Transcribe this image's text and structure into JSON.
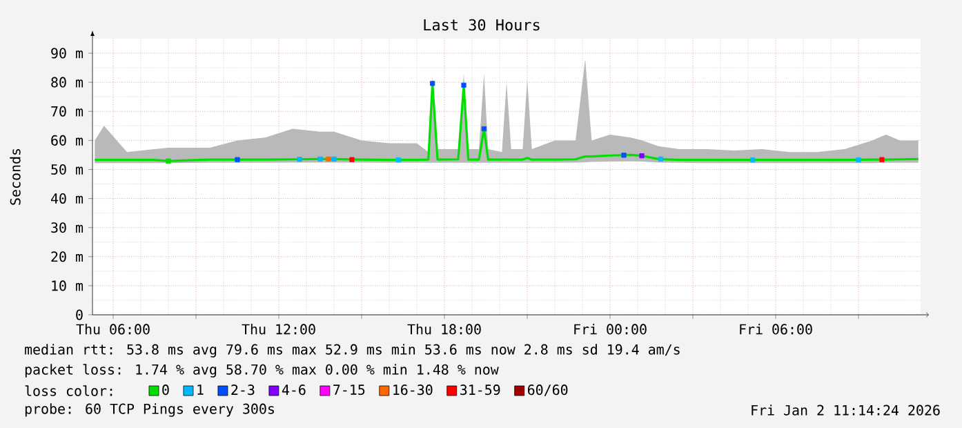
{
  "chart_data": {
    "type": "line",
    "title": "Last 30 Hours",
    "ylabel": "Seconds",
    "xlim": [
      "2026-01-01T05:15",
      "2026-01-02T11:15"
    ],
    "ylim": [
      0,
      95
    ],
    "xticks": [
      {
        "value": "2026-01-01T06:00",
        "label": "Thu 06:00"
      },
      {
        "value": "2026-01-01T09:00",
        "label": null
      },
      {
        "value": "2026-01-01T12:00",
        "label": "Thu 12:00"
      },
      {
        "value": "2026-01-01T15:00",
        "label": null
      },
      {
        "value": "2026-01-01T18:00",
        "label": "Thu 18:00"
      },
      {
        "value": "2026-01-01T21:00",
        "label": null
      },
      {
        "value": "2026-01-02T00:00",
        "label": "Fri 00:00"
      },
      {
        "value": "2026-01-02T03:00",
        "label": null
      },
      {
        "value": "2026-01-02T06:00",
        "label": "Fri 06:00"
      },
      {
        "value": "2026-01-02T09:00",
        "label": null
      }
    ],
    "yticks": [
      0,
      {
        "value": 10,
        "label": "10 m"
      },
      {
        "value": 20,
        "label": "20 m"
      },
      {
        "value": 30,
        "label": "30 m"
      },
      {
        "value": 40,
        "label": "40 m"
      },
      {
        "value": 50,
        "label": "50 m"
      },
      {
        "value": 60,
        "label": "60 m"
      },
      {
        "value": 70,
        "label": "70 m"
      },
      {
        "value": 80,
        "label": "80 m"
      },
      {
        "value": 90,
        "label": "90 m"
      }
    ],
    "grid": true,
    "legend": "bottom",
    "legend_title": "loss color:",
    "series": [
      {
        "color": "#00e000",
        "x": [
          "2026-01-01T05:20",
          "2026-01-01T05:40",
          "2026-01-01T06:30",
          "2026-01-01T07:30",
          "2026-01-01T08:00",
          "2026-01-01T09:30",
          "2026-01-01T10:30",
          "2026-01-01T11:30",
          "2026-01-01T12:30",
          "2026-01-01T13:30",
          "2026-01-01T14:00",
          "2026-01-01T15:00",
          "2026-01-01T16:00",
          "2026-01-01T17:00",
          "2026-01-01T17:25",
          "2026-01-01T17:34",
          "2026-01-01T17:45",
          "2026-01-01T18:30",
          "2026-01-01T18:42",
          "2026-01-01T18:52",
          "2026-01-01T19:15",
          "2026-01-01T19:26",
          "2026-01-01T19:35",
          "2026-01-01T20:05",
          "2026-01-01T20:15",
          "2026-01-01T20:25",
          "2026-01-01T20:50",
          "2026-01-01T21:00",
          "2026-01-01T21:10",
          "2026-01-01T22:00",
          "2026-01-01T22:45",
          "2026-01-01T23:06",
          "2026-01-01T23:20",
          "2026-01-02T00:00",
          "2026-01-02T00:45",
          "2026-01-02T01:10",
          "2026-01-02T01:45",
          "2026-01-02T02:30",
          "2026-01-02T03:30",
          "2026-01-02T04:30",
          "2026-01-02T05:30",
          "2026-01-02T06:30",
          "2026-01-02T07:30",
          "2026-01-02T08:30",
          "2026-01-02T09:30",
          "2026-01-02T10:00",
          "2026-01-02T10:30",
          "2026-01-02T11:10"
        ],
        "values": [
          53.3,
          53.3,
          53.3,
          53.3,
          52.9,
          53.4,
          53.4,
          53.4,
          53.5,
          53.6,
          53.6,
          53.4,
          53.3,
          53.3,
          53.4,
          79.6,
          53.4,
          53.5,
          79,
          53.4,
          53.4,
          64,
          53.4,
          53.4,
          53.5,
          53.4,
          53.4,
          54,
          53.4,
          53.4,
          53.5,
          54.5,
          54.5,
          54.8,
          55,
          54.7,
          53.6,
          53.3,
          53.3,
          53.3,
          53.3,
          53.3,
          53.3,
          53.3,
          53.4,
          53.4,
          53.5,
          53.6
        ],
        "lower": [
          52.2,
          52.2,
          52.2,
          52.2,
          52.2,
          52.3,
          52.3,
          52.3,
          52.4,
          52.4,
          52.4,
          52.4,
          52.3,
          52.3,
          52.3,
          52.3,
          52.3,
          52.3,
          52.3,
          52.3,
          52.3,
          52.3,
          52.3,
          52.3,
          52.3,
          52.3,
          52.3,
          52.3,
          52.3,
          52.3,
          52.4,
          52.5,
          52.6,
          52.7,
          52.8,
          52.7,
          52.4,
          52.3,
          52.2,
          52.2,
          52.2,
          52.2,
          52.2,
          52.2,
          52.2,
          52.3,
          52.3,
          52.3
        ],
        "upper": [
          60,
          65,
          56,
          57,
          57.5,
          57.5,
          60,
          61,
          64,
          63,
          63,
          60,
          59,
          59,
          56,
          82,
          57,
          57,
          83,
          57,
          57,
          83,
          57,
          56,
          80,
          57,
          57,
          81,
          57,
          60,
          60,
          88,
          60,
          62,
          61,
          60,
          58,
          57,
          57,
          56.5,
          57,
          56,
          56,
          57,
          60,
          62,
          60,
          60
        ]
      },
      {
        "type": "scatter",
        "name": "0",
        "color": "#00e000",
        "marker": "square",
        "x": [
          "2026-01-01T08:00"
        ],
        "values": [
          52.9
        ]
      },
      {
        "type": "scatter",
        "name": "1",
        "color": "#00b8ff",
        "marker": "square",
        "x": [
          "2026-01-01T12:45",
          "2026-01-01T13:30",
          "2026-01-01T14:00",
          "2026-01-01T16:20",
          "2026-01-02T01:50",
          "2026-01-02T05:10",
          "2026-01-02T09:00"
        ],
        "values": [
          53.5,
          53.6,
          53.6,
          53.3,
          53.6,
          53.3,
          53.3
        ]
      },
      {
        "type": "scatter",
        "name": "2-3",
        "color": "#0050ff",
        "marker": "square",
        "x": [
          "2026-01-01T10:30",
          "2026-01-01T17:34",
          "2026-01-01T18:42",
          "2026-01-01T19:26",
          "2026-01-02T00:30"
        ],
        "values": [
          53.4,
          79.6,
          79,
          64,
          54.9
        ]
      },
      {
        "type": "scatter",
        "name": "4-6",
        "color": "#7f00ff",
        "marker": "square",
        "x": [
          "2026-01-02T01:09"
        ],
        "values": [
          54.7
        ]
      },
      {
        "type": "scatter",
        "name": "7-15",
        "color": "#ff00ff",
        "marker": "square"
      },
      {
        "type": "scatter",
        "name": "16-30",
        "color": "#ff6600",
        "marker": "square",
        "x": [
          "2026-01-01T13:48"
        ],
        "values": [
          53.6
        ]
      },
      {
        "type": "scatter",
        "name": "31-59",
        "color": "#ff0000",
        "marker": "square",
        "x": [
          "2026-01-01T14:39",
          "2026-01-02T09:51"
        ],
        "values": [
          53.4,
          53.4
        ]
      },
      {
        "type": "scatter",
        "name": "60/60",
        "color": "#a00000",
        "marker": "square"
      }
    ],
    "annotations": [
      "median rtt: 53.8 ms avg 79.6 ms max 52.9 ms min 53.6 ms now 2.8 ms sd 19.4 am/s",
      "packet loss: 1.74 % avg 58.70 % max 0.00 % min 1.48 % now",
      "probe: 60 TCP Pings every 300s",
      "Fri Jan 2 11:14:24 2026"
    ]
  }
}
